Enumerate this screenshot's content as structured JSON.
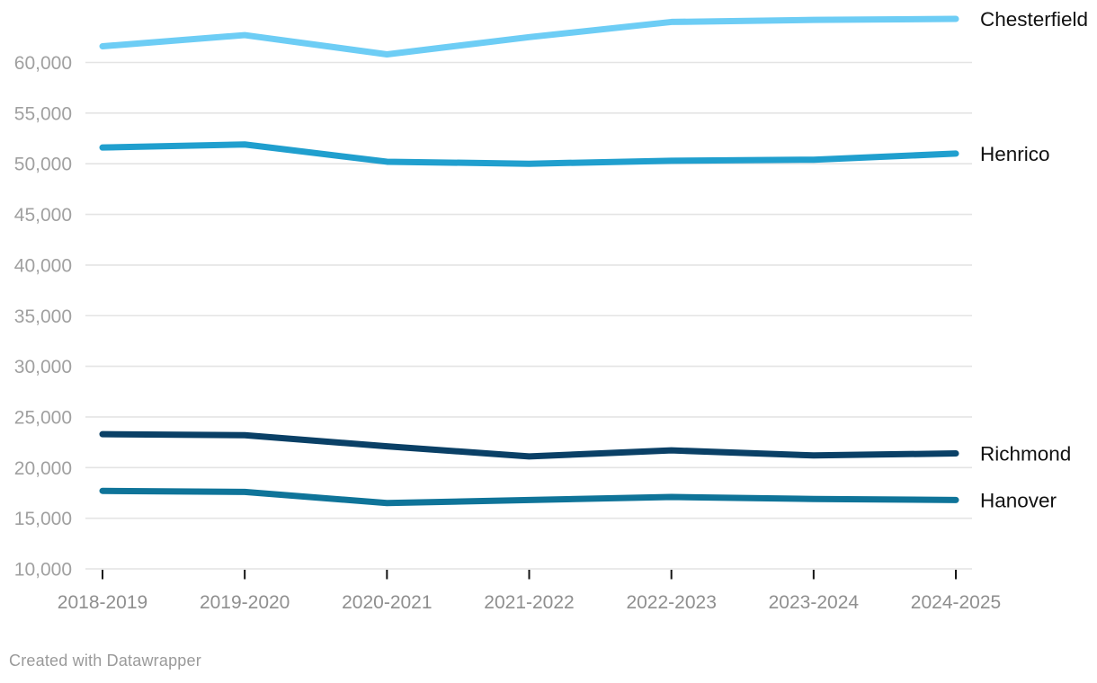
{
  "chart_data": {
    "type": "line",
    "title": "",
    "categories": [
      "2018-2019",
      "2019-2020",
      "2020-2021",
      "2021-2022",
      "2022-2023",
      "2023-2024",
      "2024-2025"
    ],
    "series": [
      {
        "name": "Chesterfield",
        "color": "#6dcdf5",
        "values": [
          61600,
          62700,
          60800,
          62500,
          64000,
          64200,
          64300
        ]
      },
      {
        "name": "Henrico",
        "color": "#209fce",
        "values": [
          51600,
          51900,
          50200,
          50000,
          50300,
          50400,
          51000
        ]
      },
      {
        "name": "Richmond",
        "color": "#0a4066",
        "values": [
          23300,
          23200,
          22100,
          21100,
          21700,
          21200,
          21400
        ]
      },
      {
        "name": "Hanover",
        "color": "#0f7499",
        "values": [
          17700,
          17600,
          16500,
          16800,
          17100,
          16900,
          16800
        ]
      }
    ],
    "yticks": [
      {
        "value": 10000,
        "label": "10,000"
      },
      {
        "value": 15000,
        "label": "15,000"
      },
      {
        "value": 20000,
        "label": "20,000"
      },
      {
        "value": 25000,
        "label": "25,000"
      },
      {
        "value": 30000,
        "label": "30,000"
      },
      {
        "value": 35000,
        "label": "35,000"
      },
      {
        "value": 40000,
        "label": "40,000"
      },
      {
        "value": 45000,
        "label": "45,000"
      },
      {
        "value": 50000,
        "label": "50,000"
      },
      {
        "value": 55000,
        "label": "55,000"
      },
      {
        "value": 60000,
        "label": "60,000"
      }
    ],
    "ylim": [
      10000,
      65500
    ],
    "grid": "horizontal-only",
    "legend_position": "direct-labels-right-of-line-ends",
    "line_width": 7,
    "colors": {
      "gridline": "#e4e4e4",
      "x_tick_mark": "#141414",
      "y_tick_label": "#a0a0a0",
      "x_tick_label": "#8f8f8f",
      "series_label": "#111111"
    }
  },
  "footer": {
    "credit": "Created with Datawrapper"
  }
}
